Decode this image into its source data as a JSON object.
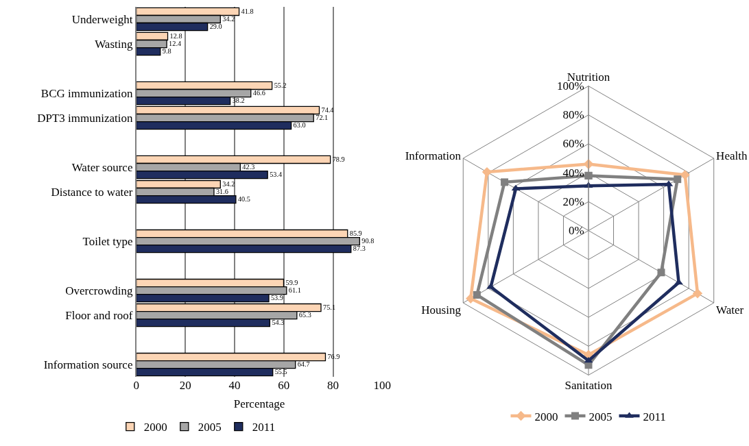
{
  "chart_data": [
    {
      "type": "bar",
      "orientation": "horizontal",
      "xlabel": "Percentage",
      "categories": [
        "Underweight",
        "Wasting",
        null,
        "BCG immunization",
        "DPT3 immunization",
        null,
        "Water source",
        "Distance to water",
        null,
        "Toilet type",
        null,
        "Overcrowding",
        "Floor and roof",
        null,
        "Information source"
      ],
      "series": [
        {
          "name": "2000",
          "color": "#fcd5b5",
          "values": [
            41.8,
            12.8,
            null,
            55.2,
            74.4,
            null,
            78.9,
            34.2,
            null,
            85.9,
            null,
            59.9,
            75.1,
            null,
            76.9
          ],
          "value_labels": [
            "41.8",
            "12.8",
            null,
            "55.2",
            "74.4",
            null,
            "78.9",
            "34.2",
            null,
            "85.9",
            null,
            "59.9",
            "75.1",
            null,
            "76.9"
          ]
        },
        {
          "name": "2005",
          "color": "#a6a6a6",
          "values": [
            34.2,
            12.4,
            null,
            46.6,
            72.1,
            null,
            42.3,
            31.6,
            null,
            90.8,
            null,
            61.1,
            65.3,
            null,
            64.7
          ],
          "value_labels": [
            "34.2",
            "12.4",
            null,
            "46.6",
            "72.1",
            null,
            "42.3",
            "31.6",
            null,
            "90.8",
            null,
            "61.1",
            "65.3",
            null,
            "64.7"
          ]
        },
        {
          "name": "2011",
          "color": "#1f2d5e",
          "values": [
            29.0,
            9.8,
            null,
            38.2,
            63.0,
            null,
            53.4,
            40.5,
            null,
            87.3,
            null,
            53.9,
            54.3,
            null,
            55.5
          ],
          "value_labels": [
            "29.0",
            "9.8",
            null,
            "38.2",
            "63.0",
            null,
            "53.4",
            "40.5",
            null,
            "87.3",
            null,
            "53.9",
            "54.3",
            null,
            "55.5"
          ]
        }
      ],
      "xlim": [
        0,
        100
      ],
      "xticks": [
        0,
        20,
        40,
        60,
        80,
        100
      ],
      "grid": "x",
      "legend": "bottom"
    },
    {
      "type": "radar",
      "categories": [
        "Nutrition",
        "Health",
        "Water",
        "Sanitation",
        "Housing",
        "Information"
      ],
      "series": [
        {
          "name": "2000",
          "color": "#f6b98a",
          "marker": "diamond",
          "values": [
            46,
            77,
            87,
            86,
            94,
            81
          ]
        },
        {
          "name": "2005",
          "color": "#808080",
          "marker": "square",
          "values": [
            38,
            71,
            58,
            93,
            89,
            67
          ]
        },
        {
          "name": "2011",
          "color": "#1f2d5e",
          "marker": "triangle",
          "values": [
            31,
            64,
            72,
            90,
            78,
            58
          ]
        }
      ],
      "ylim": [
        0,
        100
      ],
      "yticks": [
        {
          "value": 0,
          "label": "0%"
        },
        {
          "value": 20,
          "label": "20%"
        },
        {
          "value": 40,
          "label": "40%"
        },
        {
          "value": 60,
          "label": "60%"
        },
        {
          "value": 80,
          "label": "80%"
        },
        {
          "value": 100,
          "label": "100%"
        }
      ],
      "legend": "bottom"
    }
  ]
}
